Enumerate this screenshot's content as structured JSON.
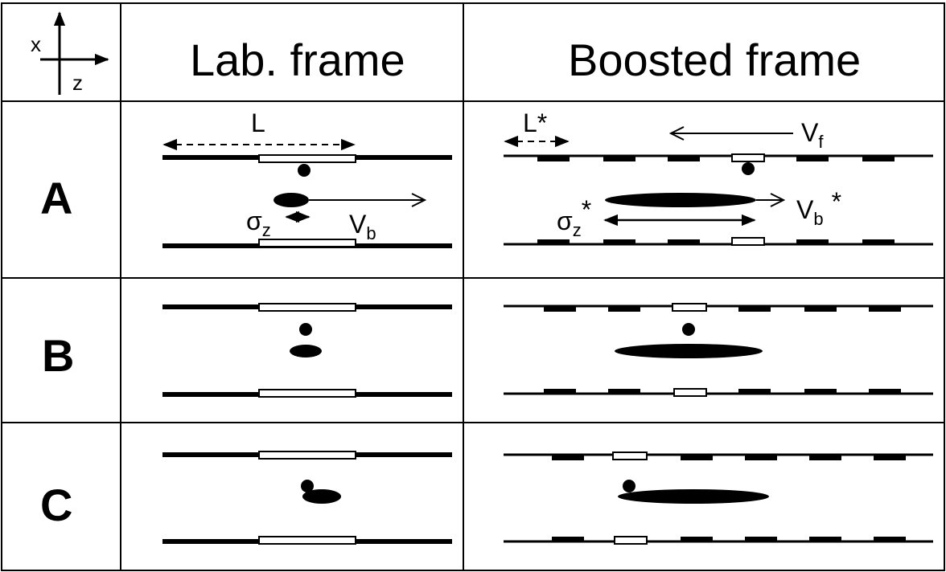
{
  "headers": {
    "lab": "Lab. frame",
    "boosted": "Boosted frame"
  },
  "axes": {
    "x": "x",
    "z": "z"
  },
  "rows": [
    "A",
    "B",
    "C"
  ],
  "labels": {
    "L": "L",
    "sigma_z": "σ",
    "sigma_z_sub": "z",
    "V_b": "V",
    "V_b_sub": "b",
    "L_star": "L*",
    "V_f": "V",
    "V_f_sub": "f",
    "sigma_z_star": "σ",
    "sigma_z_star_sub": "z",
    "star": "*",
    "V_b_star": "V",
    "V_b_star_sub": "b"
  },
  "icons": [
    "axes-arrow-icon"
  ]
}
